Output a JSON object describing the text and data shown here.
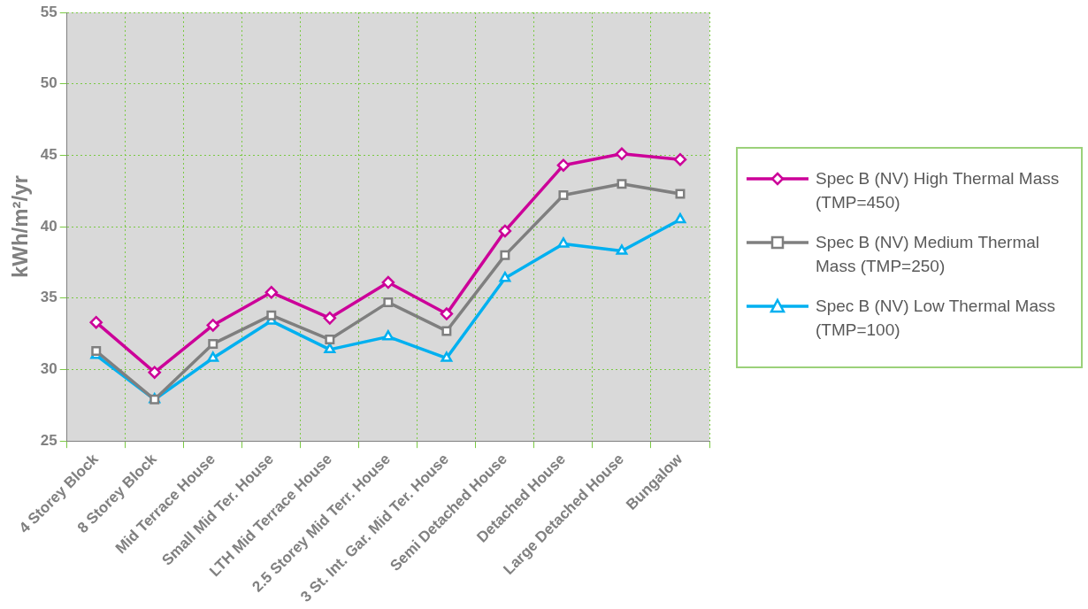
{
  "chart_data": {
    "type": "line",
    "ylabel": "kWh/m²/yr",
    "categories": [
      "4 Storey Block",
      "8 Storey Block",
      "Mid Terrace House",
      "Small Mid Ter. House",
      "LTH Mid Terrace House",
      "2.5 Storey Mid Terr. House",
      "3 St. Int. Gar. Mid Ter. House",
      "Semi Detached House",
      "Detached House",
      "Large Detached House",
      "Bungalow"
    ],
    "series": [
      {
        "name": "Spec B (NV) High Thermal Mass (TMP=450)",
        "color": "#cc0099",
        "marker": "diamond",
        "values": [
          33.3,
          29.8,
          33.1,
          35.4,
          33.6,
          36.1,
          33.9,
          39.7,
          44.3,
          45.1,
          44.7
        ]
      },
      {
        "name": "Spec B (NV) Medium Thermal Mass (TMP=250)",
        "color": "#7f7f7f",
        "marker": "square",
        "values": [
          31.3,
          27.9,
          31.8,
          33.8,
          32.1,
          34.7,
          32.7,
          38.0,
          42.2,
          43.0,
          42.3
        ]
      },
      {
        "name": "Spec B (NV) Low Thermal Mass (TMP=100)",
        "color": "#00b0f0",
        "marker": "triangle",
        "values": [
          31.0,
          27.9,
          30.8,
          33.4,
          31.4,
          32.3,
          30.8,
          36.4,
          38.8,
          38.3,
          40.5
        ]
      }
    ],
    "ylim": [
      25,
      55
    ],
    "yticks": [
      25,
      30,
      35,
      40,
      45,
      50,
      55
    ],
    "grid": true,
    "legend": "right",
    "line_style": "solid"
  }
}
